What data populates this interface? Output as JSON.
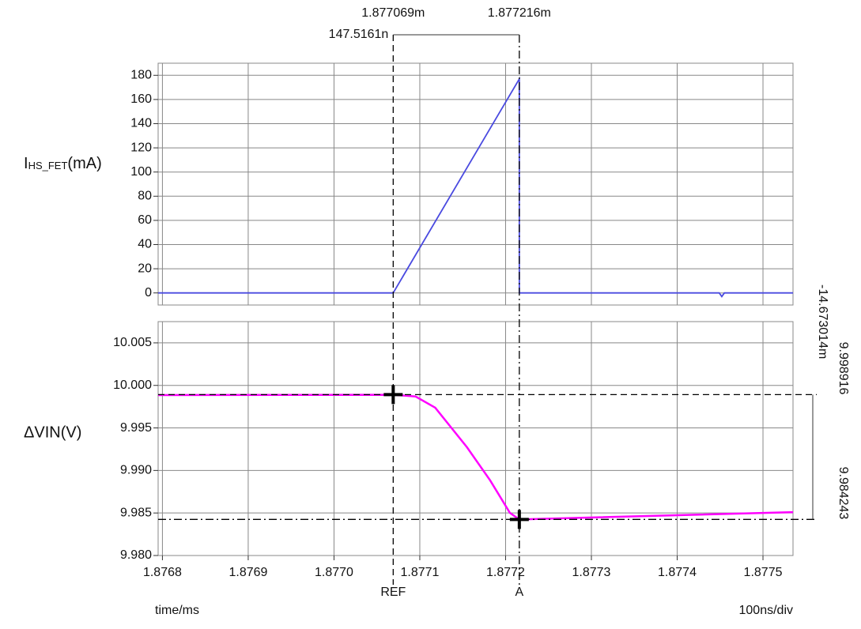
{
  "chart_data": [
    {
      "type": "line",
      "y_label": {
        "main": "I",
        "sub": "HS_FET",
        "unit": "(mA)"
      },
      "xlim": [
        1.876795,
        1.877535
      ],
      "ylim": [
        -10,
        190
      ],
      "yticks": [
        0,
        20,
        40,
        60,
        80,
        100,
        120,
        140,
        160,
        180
      ],
      "grid": true,
      "x": [
        1.876795,
        1.877069,
        1.877216,
        1.877216,
        1.877449,
        1.877452,
        1.877455,
        1.877535
      ],
      "series": [
        {
          "color": "#4a4ae0",
          "values": [
            0,
            0,
            177,
            0,
            0,
            -3,
            0,
            0
          ]
        }
      ]
    },
    {
      "type": "line",
      "y_label": "ΔVIN(V)",
      "x_label": "time/ms",
      "x_scale_label": "100ns/div",
      "xlim": [
        1.876795,
        1.877535
      ],
      "ylim": [
        9.98,
        10.0075
      ],
      "xticks": [
        1.8768,
        1.8769,
        {
          "value": 1.877,
          "label": "1.8770"
        },
        1.8771,
        1.8772,
        1.8773,
        1.8774,
        1.8775
      ],
      "yticks": [
        10.005,
        {
          "value": 10,
          "label": "10.000"
        },
        9.995,
        {
          "value": 9.99,
          "label": "9.990"
        },
        9.985,
        {
          "value": 9.98,
          "label": "9.980"
        }
      ],
      "grid": true,
      "x": [
        1.876795,
        1.877069,
        1.877095,
        1.877118,
        1.877155,
        1.877182,
        1.877205,
        1.877216,
        1.877535
      ],
      "series": [
        {
          "color": "#ff00ff",
          "values": [
            9.99886,
            9.9989,
            9.9987,
            9.99738,
            9.99273,
            9.98883,
            9.98502,
            9.98424,
            9.9851
          ]
        }
      ]
    }
  ],
  "cursors": {
    "vertical": [
      {
        "name": "REF",
        "x": {
          "value": 1.877069,
          "label": "1.877069m"
        }
      },
      {
        "name": "A",
        "x": {
          "value": 1.877216,
          "label": "1.877216m"
        }
      }
    ],
    "x_delta": {
      "value": 0.0001475161,
      "label": "147.5161n"
    },
    "horizontal": [
      9.998916,
      9.984243
    ],
    "y_delta": {
      "value": -0.014673014,
      "label": "-14.673014m"
    }
  }
}
